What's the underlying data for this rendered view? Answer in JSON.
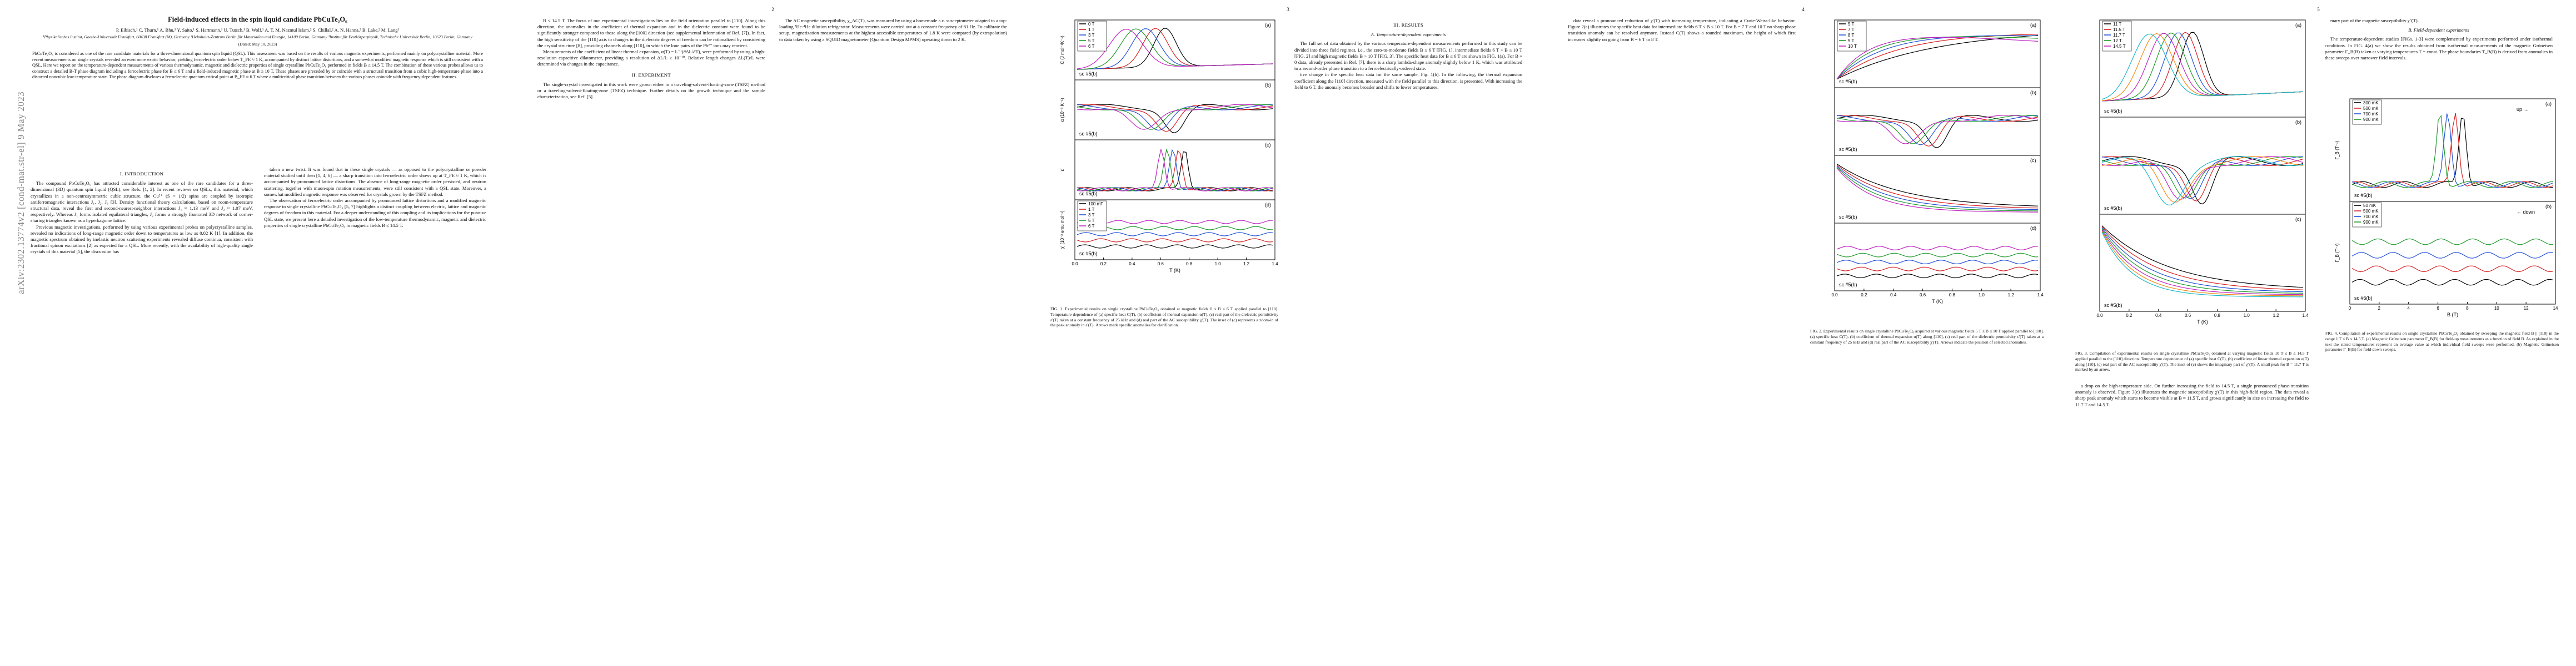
{
  "arxiv_id": "arXiv:2302.13774v2  [cond-mat.str-el]  9 May 2023",
  "pages": [
    "1",
    "2",
    "3",
    "4",
    "5"
  ],
  "paper": {
    "title": "Field-induced effects in the spin liquid candidate PbCuTe₂O₆",
    "authors": "P. Eibisch,¹ C. Thurn,¹ A. Bhu,¹ Y. Saito,¹ S. Hartmann,¹ U. Tutsch,¹ B. Wolf,¹ A. T. M. Nazmul Islam,² S. Chillal,² A. N. Hanna,³ B. Lake,² M. Lang¹",
    "affiliations": "¹Physikalisches Institut, Goethe-Universität Frankfurt, 60438 Frankfurt (M), Germany  ²Helmholtz-Zentrum Berlin für Materialien und Energie, 14109 Berlin, Germany  ³Institut für Festkörperphysik, Technische Universität Berlin, 10623 Berlin, Germany",
    "dated": "(Dated: May 10, 2023)",
    "abstract": "PbCuTe₂O₆ is considered as one of the rare candidate materials for a three-dimensional quantum spin liquid (QSL). This assessment was based on the results of various magnetic experiments, performed mainly on polycrystalline material. More recent measurements on single crystals revealed an even more exotic behavior, yielding ferroelectric order below T_FE ≈ 1 K, accompanied by distinct lattice distortions, and a somewhat modified magnetic response which is still consistent with a QSL. Here we report on the temperature-dependent measurements of various thermodynamic, magnetic and dielectric properties of single crystalline PbCuTe₂O₆ performed in fields B ≤ 14.5 T. The combination of these various probes allows us to construct a detailed B-T phase diagram including a ferroelectric phase for B ≤ 6 T and a field-induced magnetic phase at B ≥ 10 T. These phases are preceded by or coincide with a structural transition from a cubic high-temperature phase into a distorted noncubic low-temperature state. The phase diagram discloses a ferroelectric quantum critical point at B_FE ≈ 6 T where a multicritical phase transition between the various phases coincide with frequency-dependent features."
  },
  "headings": {
    "intro": "I.  INTRODUCTION",
    "experiment": "II.  EXPERIMENT",
    "results": "III.  RESULTS",
    "subsec_a": "A.  Temperature-dependent experiments",
    "subsec_b": "B.  Field-dependent experiments"
  },
  "body": {
    "p1_col1": "The compound PbCuTe₂O₆ has attracted considerable interest as one of the rare candidates for a three-dimensional (3D) quantum spin liquid (QSL), see Refs. [1, 2]. In recent reviews on QSLs, this material, which crystallizes in a non-centrosymmetric cubic structure, the Cu²⁺ (S = 1/2) spins are coupled by isotropic antiferromagnetic interactions J₁, J₂, J₃ [3]. Density functional theory calculations, based on room-temperature structural data, reveal the first and second-nearest-neighbor interactions J₁ ≈ 1.13 meV and J₂ ≈ 1.07 meV, respectively. Whereas J₁ forms isolated equilateral triangles, J₂ forms a strongly frustrated 3D network of corner-sharing triangles known as a hyperkagome lattice.",
    "p2_col1": "Previous magnetic investigations, performed by using various experimental probes on polycrystalline samples, revealed no indications of long-range magnetic order down to temperatures as low as 0.02 K [1]. In addition, the magnetic spectrum obtained by inelastic neutron scattering experiments revealed diffuse continua, consistent with fractional spinon excitations [2] as expected for a QSL. More recently, with the availability of high-quality single crystals of this material [5], the discussion has",
    "p1_col2": "taken a new twist. It was found that in these single crystals — as opposed to the polycrystalline or powder material studied until then [1, 4, 6] — a sharp transition into ferroelectric order shows up at T_FE ≈ 1 K, which is accompanied by pronounced lattice distortions. The absence of long-range magnetic order persisted, and neutron scattering, together with muon-spin rotation measurements, were still consistent with a QSL state. Moreover, a somewhat modified magnetic response was observed for crystals grown by the TSFZ method.",
    "p2_col2": "The observation of ferroelectric order accompanied by pronounced lattice distortions and a modified magnetic response in single crystalline PbCuTe₂O₆ [5, 7] highlights a distinct coupling between electric, lattice and magnetic degrees of freedom in this material. For a deeper understanding of this coupling and its implications for the putative QSL state, we present here a detailed investigation of the low-temperature thermodynamic, magnetic and dielectric properties of single crystalline PbCuTe₂O₆ in magnetic fields B ≤ 14.5 T.",
    "p1_col3": "B ≤ 14.5 T. The focus of our experimental investigations lies on the field orientation parallel to [110]. Along this direction, the anomalies in the coefficient of thermal expansion and in the dielectric constant were found to be significantly stronger compared to those along the [100] direction (see supplemental information of Ref. [7]). In fact, the high sensitivity of the [110] axis to changes in the dielectric degrees of freedom can be rationalized by considering the crystal structure [8], providing channels along [110], in which the lone pairs of the Pb²⁺ ions may reorient.",
    "p2_col3": "Measurements of the coefficient of linear thermal expansion, α(T) = L⁻¹(∂ΔL/∂T), were performed by using a high-resolution capacitive dilatometer, providing a resolution of ΔL/L ≥ 10⁻¹⁰. Relative length changes ΔL(T)/L were determined via changes in the capacitance.",
    "p3_col3": "The single-crystal investigated in this work were grown either in a traveling-solvent-floating-zone (TSFZ) method or a traveling-solvent-floating-zone (TSFZ) technique. Further details on the growth technique and the sample characterization, see Ref. [5].",
    "p1_col4": "The full set of data obtained by the various temperature-dependent measurements performed in this study can be divided into three field regimes, i.e., the zero-to-moderate fields B ≤ 6 T [FIG. 1], intermediate fields 6 T < B ≤ 10 T [FIG. 2] and high magnetic fields B > 10 T [FIG. 3]. The specific heat data for B ≤ 6 T are shown in FIG. 1(a). For B = 0 data, already presented in Ref. [7], there is a sharp lambda-shape anomaly slightly below 1 K, which was attributed to a second-order phase transition to a ferroelectrically-ordered state.",
    "p1_col5": "tive change in the specific heat data for the same sample, Fig. 1(b). In the following, the thermal expansion coefficient along the [110] direction, measured with the field parallel to this direction, is presented. With increasing the field to 6 T, the anomaly becomes broader and shifts to lower temperatures.",
    "p2_col5": "The AC magnetic susceptibility, χ_AC(T), was measured by using a homemade a.c. susceptometer adapted to a top-loading ³He-⁴He dilution refrigerator. Measurements were carried out at a constant frequency of 81 Hz. To calibrate the setup, magnetization measurements at the highest accessible temperatures of 1.8 K were compared (by extrapolation) to data taken by using a SQUID magnetometer (Quantum Design MPMS) operating down to 2 K.",
    "p1_col6": "data reveal a pronounced reduction of χ'(T) with increasing temperature, indicating a Curie-Weiss-like behavior. Figure 2(a) illustrates the specific heat data for intermediate fields 6 T ≤ B ≤ 10 T. For B = 7 T and 10 T no sharp phase transition anomaly can be resolved anymore. Instead C(T) shows a rounded maximum, the height of which first increases slightly on going from B = 6 T to 8 T.",
    "p1_col7": "a drop on the high-temperature side. On further increasing the field to 14.5 T, a single pronounced phase-transition anomaly is observed. Figure 3(c) illustrates the magnetic susceptibility χ'(T) in this high-field region. The data reveal a sharp peak anomaly which starts to become visible at B ≈ 11.5 T, and grows significantly in size on increasing the field to 11.7 T and 14.5 T.",
    "p2_col7": "mary part of the magnetic susceptibility χ''(T).",
    "p3_col7": "The temperature-dependent studies [FIGs. 1-3] were complemented by experiments performed under isothermal conditions. In FIG. 4(a) we show the results obtained from isothermal measurements of the magnetic Grüneisen parameter Γ_B(B) taken at varying temperatures T = const. The phase boundaries T_B(B) is derived from anomalies in these sweeps over narrower field intervals."
  },
  "captions": {
    "fig1": "FIG. 1. Experimental results on single crystalline PbCuTe₂O₆ obtained at magnetic fields 0 ≤ B ≤ 6 T applied parallel to [110]. Temperature dependence of (a) specific heat C(T), (b) coefficient of thermal expansion α(T), (c) real part of the dielectric permittivity ε'(T) taken at a constant frequency of 25 kHz and (d) real part of the AC susceptibility χ'(T). The inset of (c) represents a zoom-in of the peak anomaly in ε'(T). Arrows mark specific anomalies for clarification.",
    "fig2": "FIG. 2. Experimental results on single crystalline PbCuTe₂O₆ acquired at various magnetic fields 5 T ≤ B ≤ 10 T applied parallel to [110]. (a) specific heat C(T), (b) coefficient of thermal expansion α(T) along [110], (c) real part of the dielectric permittivity ε'(T) taken at a constant frequency of 25 kHz and (d) real part of the AC susceptibility χ'(T). Arrows indicate the position of selected anomalies.",
    "fig3": "FIG. 3. Compilation of experimental results on single crystalline PbCuTe₂O₆ obtained at varying magnetic fields 10 T ≤ B ≤ 14.5 T applied parallel to the [110] direction. Temperature dependence of (a) specific heat C(T), (b) coefficient of linear thermal expansion α(T) along [110], (c) real part of the AC susceptibility χ'(T). The inset of (c) shows the imaginary part of χ''(T). A small peak for B = 11.7 T is marked by an arrow.",
    "fig4": "FIG. 4. Compilation of experimental results on single crystalline PbCuTe₂O₆ obtained by sweeping the magnetic field B || [110] in the range 1 T ≤ B ≤ 14.5 T. (a) Magnetic Grüneisen parameter Γ_B(B) for field-up measurements as a function of field B. As explained in the text the stated temperatures represent an average value at which individual field sweeps were performed. (b) Magnetic Grüneisen parameter Γ_B(B) for field-down sweeps."
  },
  "figures": {
    "fig1": {
      "panels": [
        "(a)",
        "(b)",
        "(c)",
        "(d)"
      ],
      "sample": "sc #5(b)",
      "x_axis": "T (K)",
      "y_labels": [
        "C (J mol⁻¹K⁻¹)",
        "α (10⁻⁶ K⁻¹)",
        "ε'",
        "χ' (10⁻³ emu mol⁻¹)"
      ],
      "legend_a": [
        "0 T",
        "1 T",
        "3 T",
        "5 T",
        "6 T"
      ],
      "legend_d": [
        "100 mT",
        "1 T",
        "3 T",
        "5 T",
        "6 T"
      ],
      "x_ticks": [
        "0.0",
        "0.2",
        "0.4",
        "0.6",
        "0.8",
        "1.0",
        "1.2",
        "1.4"
      ]
    },
    "fig2": {
      "panels": [
        "(a)",
        "(b)",
        "(c)",
        "(d)"
      ],
      "sample": "sc #5(b)",
      "x_axis": "T (K)",
      "legend": [
        "5 T",
        "7 T",
        "8 T",
        "9 T",
        "10 T"
      ],
      "x_ticks": [
        "0.0",
        "0.2",
        "0.4",
        "0.6",
        "0.8",
        "1.0",
        "1.2",
        "1.4"
      ]
    },
    "fig3": {
      "panels": [
        "(a)",
        "(b)",
        "(c)"
      ],
      "sample": "sc #5(b)",
      "x_axis": "T (K)",
      "legend": [
        "11 T",
        "11.5 T",
        "11.7 T",
        "12 T",
        "14.5 T"
      ],
      "x_ticks": [
        "0.0",
        "0.2",
        "0.4",
        "0.6",
        "0.8",
        "1.0",
        "1.2",
        "1.4"
      ]
    },
    "fig4": {
      "panels": [
        "(a)",
        "(b)"
      ],
      "sample": "sc #5(b)",
      "x_axis": "B (T)",
      "y_label": "Γ_B (T⁻¹)",
      "legend_a": [
        "300 mK",
        "500 mK",
        "700 mK",
        "900 mK"
      ],
      "legend_b": [
        "50 mK",
        "500 mK",
        "700 mK",
        "900 mK"
      ],
      "arrow_labels": [
        "up",
        "down"
      ],
      "x_ticks": [
        "0",
        "2",
        "4",
        "6",
        "8",
        "10",
        "12",
        "14"
      ]
    }
  },
  "colors": {
    "black": "#000000",
    "red": "#d62020",
    "blue": "#1f4fd6",
    "green": "#1e9a2a",
    "magenta": "#c020c0",
    "orange": "#f08a10",
    "cyan": "#18b8c8",
    "navy": "#1a237e",
    "gray": "#8a8a8a"
  }
}
